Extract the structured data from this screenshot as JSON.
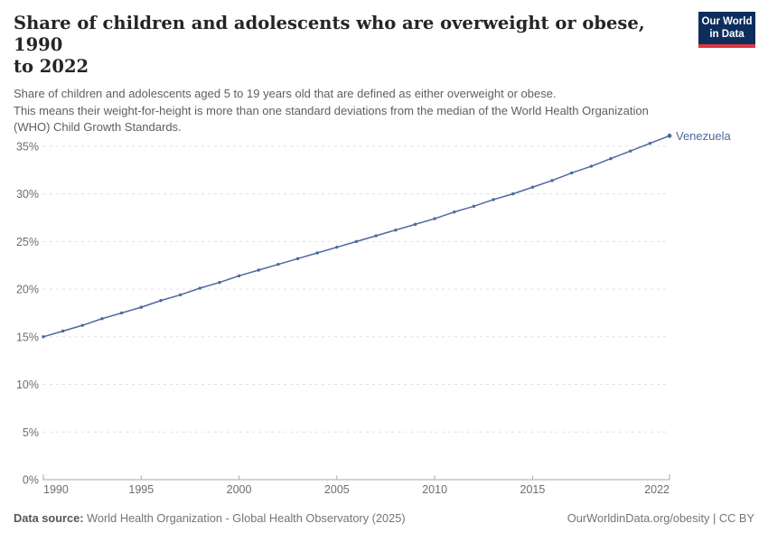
{
  "header": {
    "title": "Share of children and adolescents who are overweight or obese, 1990 to 2022",
    "title_lines": [
      "Share of children and adolescents who are overweight or obese, 1990",
      "to 2022"
    ],
    "subtitle_lines": [
      "Share of children and adolescents aged 5 to 19 years old that are defined as either overweight or obese.",
      "This means their weight-for-height is more than one standard deviations from the median of the World Health Organization",
      "(WHO) Child Growth Standards."
    ],
    "logo": {
      "line1": "Our World",
      "line2": "in Data",
      "bg_color": "#0d2e5d",
      "accent_color": "#e0363e"
    }
  },
  "chart_data": {
    "type": "line",
    "title": "Share of children and adolescents who are overweight or obese, 1990 to 2022",
    "xlabel": "",
    "ylabel": "",
    "unit": "%",
    "xlim": [
      1990,
      2022
    ],
    "ylim": [
      0,
      37
    ],
    "grid": "horizontal-dashed",
    "legend_position": "end-of-line-label",
    "xticks": [
      1990,
      1995,
      2000,
      2005,
      2010,
      2015,
      2022
    ],
    "yticks": [
      0,
      5,
      10,
      15,
      20,
      25,
      30,
      35
    ],
    "ytick_labels": [
      "0%",
      "5%",
      "10%",
      "15%",
      "20%",
      "25%",
      "30%",
      "35%"
    ],
    "x": [
      1990,
      1991,
      1992,
      1993,
      1994,
      1995,
      1996,
      1997,
      1998,
      1999,
      2000,
      2001,
      2002,
      2003,
      2004,
      2005,
      2006,
      2007,
      2008,
      2009,
      2010,
      2011,
      2012,
      2013,
      2014,
      2015,
      2016,
      2017,
      2018,
      2019,
      2020,
      2021,
      2022
    ],
    "series": [
      {
        "name": "Venezuela",
        "color": "#4C6A9C",
        "values": [
          15.0,
          15.6,
          16.2,
          16.9,
          17.5,
          18.1,
          18.8,
          19.4,
          20.1,
          20.7,
          21.4,
          22.0,
          22.6,
          23.2,
          23.8,
          24.4,
          25.0,
          25.6,
          26.2,
          26.8,
          27.4,
          28.1,
          28.7,
          29.4,
          30.0,
          30.7,
          31.4,
          32.2,
          32.9,
          33.7,
          34.5,
          35.3,
          36.1
        ]
      }
    ],
    "gridline_color": "#e0e0e0",
    "axis_color": "#a8a8a8"
  },
  "footer": {
    "datasource_label": "Data source:",
    "datasource_text": " World Health Organization - Global Health Observatory (2025)",
    "link": "OurWorldinData.org/obesity | CC BY"
  }
}
